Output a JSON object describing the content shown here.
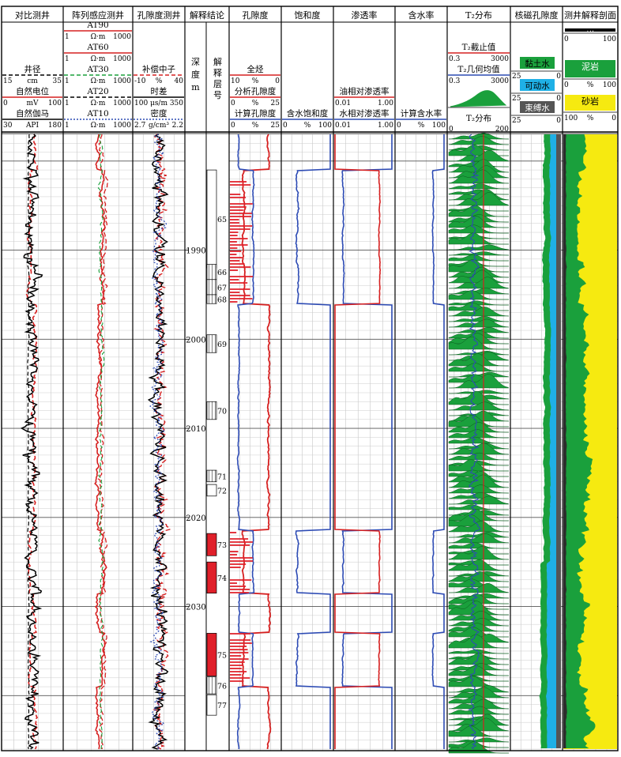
{
  "chart_data": {
    "type": "well-log",
    "depth": {
      "start": 1977,
      "end": 2046,
      "unit": "m",
      "ticks": [
        1990,
        2000,
        2010,
        2020,
        2030
      ]
    },
    "tracks": [
      {
        "id": "t1",
        "title": "对比测井",
        "headers": [
          {
            "name": "井径",
            "min": "15",
            "unit": "cm",
            "max": "35",
            "color": "#000000",
            "dash": "5,3"
          },
          {
            "name": "自然电位",
            "min": "0",
            "unit": "mV",
            "max": "100",
            "color": "#d62020",
            "dash": ""
          },
          {
            "name": "自然伽马",
            "min": "30",
            "unit": "API",
            "max": "180",
            "color": "#000000",
            "dash": ""
          }
        ]
      },
      {
        "id": "t2",
        "title": "阵列感应测井",
        "headers": [
          {
            "name": "AT90",
            "min": "1",
            "unit": "Ω·m",
            "max": "1000",
            "color": "#d62020",
            "dash": ""
          },
          {
            "name": "AT60",
            "min": "1",
            "unit": "Ω·m",
            "max": "1000",
            "color": "#d62020",
            "dash": ""
          },
          {
            "name": "AT30",
            "min": "1",
            "unit": "Ω·m",
            "max": "1000",
            "color": "#1aa03c",
            "dash": "5,3"
          },
          {
            "name": "AT20",
            "min": "1",
            "unit": "Ω·m",
            "max": "1000",
            "color": "#000000",
            "dash": "5,3"
          },
          {
            "name": "AT10",
            "min": "1",
            "unit": "Ω·m",
            "max": "1000",
            "color": "#2d4bb4",
            "dash": "2,2"
          }
        ]
      },
      {
        "id": "t3",
        "title": "孔隙度测井",
        "headers": [
          {
            "name": "补偿中子",
            "min": "-10",
            "unit": "%",
            "max": "40",
            "color": "#d62020",
            "dash": "5,3"
          },
          {
            "name": "时差",
            "min": "100",
            "unit": "μs/m",
            "max": "350",
            "color": "#000000",
            "dash": ""
          },
          {
            "name": "密度",
            "min": "2.7",
            "unit": "g/cm³",
            "max": "2.2",
            "color": "#2d4bb4",
            "dash": "2,2"
          }
        ]
      },
      {
        "id": "t4",
        "title": "解释结论",
        "depth_label": [
          "深",
          "度",
          "m"
        ],
        "layer_label": [
          "解",
          "释",
          "层",
          "号"
        ]
      },
      {
        "id": "t5",
        "title": "孔隙度",
        "headers": [
          {
            "name": "全烃",
            "min": "10",
            "unit": "%",
            "max": "0",
            "color": "#d62020",
            "dash": ""
          },
          {
            "name": "分析孔隙度",
            "min": "0",
            "unit": "%",
            "max": "25",
            "color": "#d62020",
            "dash": ""
          },
          {
            "name": "计算孔隙度",
            "min": "0",
            "unit": "%",
            "max": "25",
            "color": "#2d4bb4",
            "dash": ""
          }
        ]
      },
      {
        "id": "t6",
        "title": "饱和度",
        "headers": [
          {
            "name": "含水饱和度",
            "min": "0",
            "unit": "%",
            "max": "100",
            "color": "#2d4bb4",
            "dash": ""
          }
        ]
      },
      {
        "id": "t7",
        "title": "渗透率",
        "headers": [
          {
            "name": "油相对渗透率",
            "min": "0.01",
            "unit": "",
            "max": "1.00",
            "color": "#d62020",
            "dash": ""
          },
          {
            "name": "水相对渗透率",
            "min": "0.01",
            "unit": "",
            "max": "1.00",
            "color": "#2d4bb4",
            "dash": ""
          }
        ]
      },
      {
        "id": "t8",
        "title": "含水率",
        "headers": [
          {
            "name": "计算含水率",
            "min": "0",
            "unit": "%",
            "max": "100",
            "color": "#2d4bb4",
            "dash": ""
          }
        ]
      },
      {
        "id": "t9",
        "title": "T₂分布",
        "headers": [
          {
            "name": "T₂截止值",
            "min": "0.3",
            "unit": "",
            "max": "3000",
            "color": "#d62020",
            "dash": ""
          },
          {
            "name": "T₂几何均值",
            "min": "0.3",
            "unit": "",
            "max": "3000",
            "color": "#2d4bb4",
            "dash": ""
          },
          {
            "name": "T₂分布",
            "min": "0",
            "unit": "",
            "max": "200",
            "color": "#000000",
            "dash": ""
          }
        ]
      },
      {
        "id": "t10",
        "title": "核磁孔隙度",
        "legend": [
          {
            "name": "黏土水",
            "min": "25",
            "max": "0",
            "color": "#1aa03c"
          },
          {
            "name": "可动水",
            "min": "25",
            "max": "0",
            "color": "#1fb0e6"
          },
          {
            "name": "束缚水",
            "min": "25",
            "max": "0",
            "color": "#555555"
          }
        ]
      },
      {
        "id": "t11",
        "title": "测井解释剖面",
        "legend": [
          {
            "name": "煤",
            "color": "#000000",
            "text_color": "#ffffff"
          },
          {
            "name": "泥岩",
            "color": "#1aa03c",
            "text_color": "#ffffff"
          },
          {
            "name": "砂岩",
            "color": "#f6ea10",
            "text_color": "#000000"
          }
        ],
        "scales": [
          [
            "0",
            "",
            "100"
          ],
          [
            "0",
            "%",
            "100"
          ],
          [
            "100",
            "%",
            "0"
          ]
        ]
      }
    ],
    "layers": [
      {
        "num": "65",
        "top": 1981.0,
        "bottom": 1992.0,
        "fill": "white"
      },
      {
        "num": "66",
        "top": 1991.6,
        "bottom": 1993.3,
        "fill": "hatch"
      },
      {
        "num": "67",
        "top": 1993.3,
        "bottom": 1995.0,
        "fill": "hatch"
      },
      {
        "num": "68",
        "top": 1995.0,
        "bottom": 1996.0,
        "fill": "hatch"
      },
      {
        "num": "69",
        "top": 1999.5,
        "bottom": 2001.5,
        "fill": "hatch"
      },
      {
        "num": "70",
        "top": 2007.0,
        "bottom": 2009.0,
        "fill": "hatch"
      },
      {
        "num": "71",
        "top": 2014.7,
        "bottom": 2016.0,
        "fill": "hatch"
      },
      {
        "num": "72",
        "top": 2016.3,
        "bottom": 2017.6,
        "fill": "white"
      },
      {
        "num": "73",
        "top": 2021.8,
        "bottom": 2024.3,
        "fill": "red"
      },
      {
        "num": "74",
        "top": 2025.0,
        "bottom": 2028.5,
        "fill": "red"
      },
      {
        "num": "75",
        "top": 2033.0,
        "bottom": 2037.8,
        "fill": "red"
      },
      {
        "num": "76",
        "top": 2037.9,
        "bottom": 2039.8,
        "fill": "hatch"
      },
      {
        "num": "77",
        "top": 2039.9,
        "bottom": 2042.2,
        "fill": "white"
      }
    ]
  }
}
